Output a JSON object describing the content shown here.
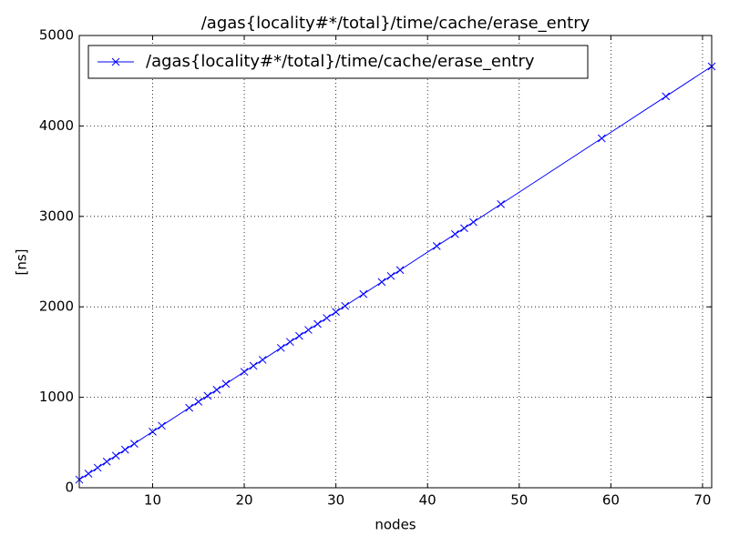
{
  "chart_data": {
    "type": "line",
    "title": "/agas{locality#*/total}/time/cache/erase_entry",
    "xlabel": "nodes",
    "ylabel": "[ns]",
    "x": [
      2,
      3,
      4,
      5,
      6,
      7,
      8,
      10,
      11,
      14,
      15,
      16,
      17,
      18,
      20,
      21,
      22,
      24,
      25,
      26,
      27,
      28,
      29,
      30,
      31,
      33,
      35,
      36,
      37,
      41,
      43,
      44,
      45,
      48,
      59,
      66,
      71
    ],
    "series": [
      {
        "name": "/agas{locality#*/total}/time/cache/erase_entry",
        "color": "#0000ff",
        "values": [
          90,
          156,
          222,
          289,
          355,
          421,
          487,
          620,
          686,
          884,
          951,
          1017,
          1083,
          1149,
          1282,
          1348,
          1414,
          1546,
          1613,
          1679,
          1745,
          1811,
          1877,
          1944,
          2010,
          2142,
          2275,
          2341,
          2407,
          2672,
          2804,
          2870,
          2937,
          3135,
          3863,
          4327,
          4658
        ]
      }
    ],
    "xlim": [
      2,
      71
    ],
    "xticks": [
      10,
      20,
      30,
      40,
      50,
      60,
      70
    ],
    "ylim": [
      0,
      5000
    ],
    "yticks": [
      0,
      1000,
      2000,
      3000,
      4000,
      5000
    ],
    "grid": true,
    "legend": "upper-left"
  }
}
